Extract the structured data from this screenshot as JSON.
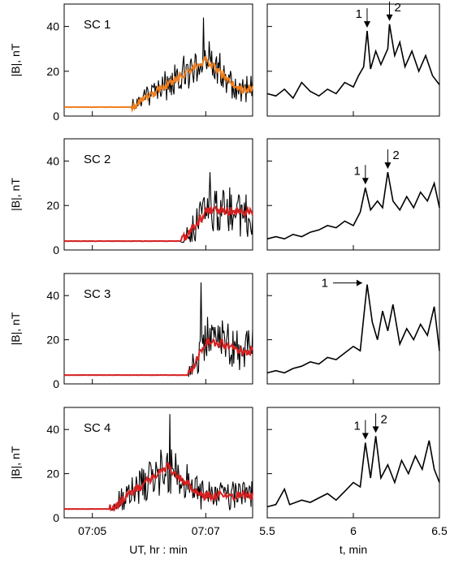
{
  "chart_data": {
    "type": "line",
    "left_xlabel": "UT, hr : min",
    "right_xlabel": "t, min",
    "ylabel": "|B|, nT",
    "ylim": [
      0,
      50
    ],
    "yticks": [
      "0",
      "20",
      "40"
    ],
    "left_xticks": [
      {
        "x": 7.0833,
        "label": "07:05"
      },
      {
        "x": 7.1167,
        "label": "07:07"
      }
    ],
    "left_xlim": [
      7.075,
      7.1305
    ],
    "right_xticks": [
      {
        "x": 5.5,
        "label": "5.5"
      },
      {
        "x": 6.0,
        "label": "6"
      },
      {
        "x": 6.5,
        "label": "6.5"
      }
    ],
    "right_xlim": [
      5.5,
      6.5
    ],
    "panels": [
      {
        "label": "SC 1",
        "smooth_color": "#f07f1e",
        "left": {
          "onset": 7.095,
          "base": 4,
          "peak_t": 7.1167,
          "peak_level": 25,
          "tail_level": 12,
          "noise": 8,
          "spike_t": 7.116,
          "spike_v": 44,
          "series_names": [
            "raw",
            "smoothed"
          ]
        },
        "right": {
          "points": [
            [
              5.5,
              10
            ],
            [
              5.55,
              9
            ],
            [
              5.6,
              12
            ],
            [
              5.65,
              8
            ],
            [
              5.7,
              15
            ],
            [
              5.75,
              11
            ],
            [
              5.8,
              9
            ],
            [
              5.85,
              12
            ],
            [
              5.9,
              10
            ],
            [
              5.95,
              15
            ],
            [
              6.0,
              13
            ],
            [
              6.03,
              18
            ],
            [
              6.06,
              22
            ],
            [
              6.08,
              38
            ],
            [
              6.1,
              21
            ],
            [
              6.13,
              29
            ],
            [
              6.16,
              23
            ],
            [
              6.2,
              30
            ],
            [
              6.21,
              41
            ],
            [
              6.24,
              27
            ],
            [
              6.27,
              33
            ],
            [
              6.3,
              22
            ],
            [
              6.34,
              29
            ],
            [
              6.38,
              20
            ],
            [
              6.42,
              27
            ],
            [
              6.46,
              18
            ],
            [
              6.5,
              14
            ]
          ],
          "annotations": [
            {
              "text": "1",
              "t": 6.08,
              "mode": "down"
            },
            {
              "text": "2",
              "t": 6.21,
              "mode": "down"
            }
          ]
        }
      },
      {
        "label": "SC 2",
        "smooth_color": "#d62020",
        "left": {
          "onset": 7.1095,
          "base": 4,
          "peak_t": 7.1175,
          "peak_level": 18,
          "tail_level": 17,
          "noise": 9,
          "spike_t": 7.118,
          "spike_v": 35,
          "series_names": [
            "raw",
            "smoothed"
          ]
        },
        "right": {
          "points": [
            [
              5.5,
              5
            ],
            [
              5.55,
              6
            ],
            [
              5.6,
              5
            ],
            [
              5.65,
              7
            ],
            [
              5.7,
              6
            ],
            [
              5.75,
              8
            ],
            [
              5.8,
              9
            ],
            [
              5.85,
              11
            ],
            [
              5.9,
              10
            ],
            [
              5.95,
              13
            ],
            [
              6.0,
              11
            ],
            [
              6.04,
              17
            ],
            [
              6.07,
              28
            ],
            [
              6.1,
              18
            ],
            [
              6.14,
              22
            ],
            [
              6.17,
              19
            ],
            [
              6.2,
              35
            ],
            [
              6.23,
              22
            ],
            [
              6.27,
              18
            ],
            [
              6.31,
              24
            ],
            [
              6.35,
              19
            ],
            [
              6.39,
              26
            ],
            [
              6.43,
              22
            ],
            [
              6.47,
              30
            ],
            [
              6.5,
              19
            ]
          ],
          "annotations": [
            {
              "text": "1",
              "t": 6.07,
              "mode": "down"
            },
            {
              "text": "2",
              "t": 6.2,
              "mode": "down"
            }
          ]
        }
      },
      {
        "label": "SC 3",
        "smooth_color": "#d62020",
        "left": {
          "onset": 7.1115,
          "base": 4,
          "peak_t": 7.1175,
          "peak_level": 20,
          "tail_level": 15,
          "noise": 9,
          "spike_t": 7.1153,
          "spike_v": 46,
          "series_names": [
            "raw",
            "smoothed"
          ]
        },
        "right": {
          "points": [
            [
              5.5,
              5
            ],
            [
              5.55,
              6
            ],
            [
              5.6,
              5
            ],
            [
              5.65,
              7
            ],
            [
              5.7,
              8
            ],
            [
              5.75,
              10
            ],
            [
              5.8,
              9
            ],
            [
              5.85,
              12
            ],
            [
              5.9,
              11
            ],
            [
              5.95,
              14
            ],
            [
              6.0,
              17
            ],
            [
              6.04,
              15
            ],
            [
              6.06,
              30
            ],
            [
              6.08,
              45
            ],
            [
              6.11,
              28
            ],
            [
              6.14,
              20
            ],
            [
              6.17,
              33
            ],
            [
              6.2,
              24
            ],
            [
              6.23,
              36
            ],
            [
              6.27,
              18
            ],
            [
              6.31,
              25
            ],
            [
              6.35,
              20
            ],
            [
              6.39,
              27
            ],
            [
              6.43,
              22
            ],
            [
              6.47,
              35
            ],
            [
              6.5,
              15
            ]
          ],
          "annotations": [
            {
              "text": "1",
              "t": 6.08,
              "mode": "right"
            }
          ]
        }
      },
      {
        "label": "SC 4",
        "smooth_color": "#d62020",
        "left": {
          "onset": 7.0885,
          "base": 4,
          "peak_t": 7.1055,
          "peak_level": 23,
          "tail_level": 10,
          "noise": 9,
          "spike_t": 7.1062,
          "spike_v": 47,
          "series_names": [
            "raw",
            "smoothed"
          ]
        },
        "right": {
          "points": [
            [
              5.5,
              5
            ],
            [
              5.55,
              6
            ],
            [
              5.6,
              13
            ],
            [
              5.63,
              6
            ],
            [
              5.7,
              8
            ],
            [
              5.75,
              7
            ],
            [
              5.8,
              9
            ],
            [
              5.85,
              11
            ],
            [
              5.9,
              8
            ],
            [
              5.95,
              12
            ],
            [
              6.0,
              16
            ],
            [
              6.04,
              14
            ],
            [
              6.07,
              34
            ],
            [
              6.1,
              18
            ],
            [
              6.13,
              37
            ],
            [
              6.16,
              18
            ],
            [
              6.2,
              24
            ],
            [
              6.24,
              16
            ],
            [
              6.28,
              26
            ],
            [
              6.32,
              20
            ],
            [
              6.36,
              28
            ],
            [
              6.4,
              22
            ],
            [
              6.44,
              35
            ],
            [
              6.47,
              22
            ],
            [
              6.5,
              16
            ]
          ],
          "annotations": [
            {
              "text": "1",
              "t": 6.07,
              "mode": "down"
            },
            {
              "text": "2",
              "t": 6.13,
              "mode": "down-left"
            }
          ]
        }
      }
    ]
  }
}
